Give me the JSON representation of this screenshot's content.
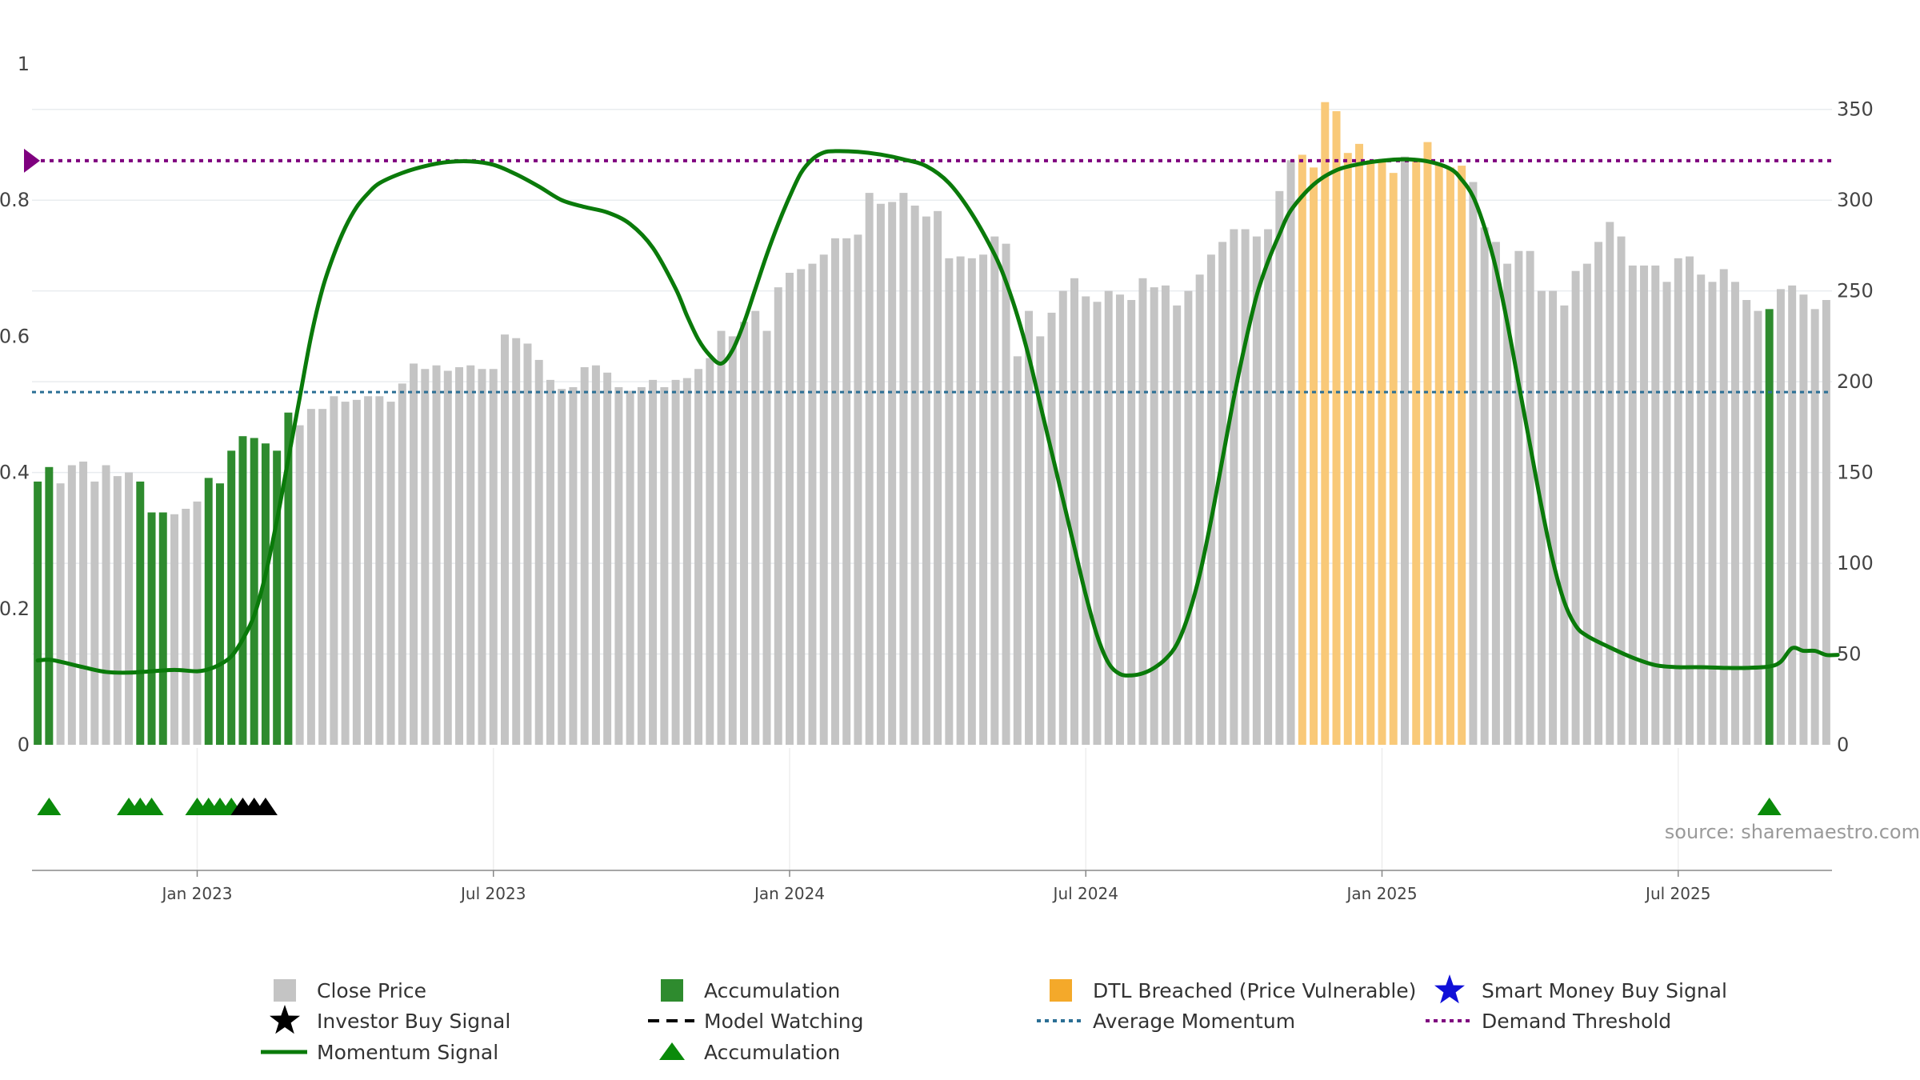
{
  "chart_data": {
    "type": "bar",
    "title": "",
    "source_text": "source: sharemaestro.com",
    "x_tick_labels": [
      "Jan 2023",
      "Jul 2023",
      "Jan 2024",
      "Jul 2024",
      "Jan 2025",
      "Jul 2025"
    ],
    "x_tick_bar_index": [
      14,
      40,
      66,
      92,
      118,
      144
    ],
    "y_left": {
      "range": [
        0,
        1
      ],
      "ticks": [
        0,
        0.2,
        0.4,
        0.6,
        0.8,
        1
      ],
      "tick_labels": [
        "0",
        "0.2",
        "0.4",
        "0.6",
        "0.8",
        "1"
      ]
    },
    "y_right": {
      "range": [
        0,
        375
      ],
      "ticks": [
        0,
        50,
        100,
        150,
        200,
        250,
        300,
        350
      ],
      "tick_labels": [
        "0",
        "50",
        "100",
        "150",
        "200",
        "250",
        "300",
        "350"
      ]
    },
    "close_price": [
      145,
      153,
      144,
      154,
      156,
      145,
      154,
      148,
      150,
      145,
      128,
      128,
      127,
      130,
      134,
      147,
      144,
      162,
      170,
      169,
      166,
      162,
      183,
      176,
      185,
      185,
      192,
      189,
      190,
      192,
      192,
      189,
      199,
      210,
      207,
      209,
      206,
      208,
      209,
      207,
      207,
      226,
      224,
      221,
      212,
      201,
      196,
      197,
      208,
      209,
      205,
      197,
      195,
      197,
      201,
      197,
      201,
      202,
      207,
      213,
      228,
      225,
      233,
      239,
      228,
      252,
      260,
      262,
      265,
      270,
      279,
      279,
      281,
      304,
      298,
      299,
      304,
      297,
      291,
      294,
      268,
      269,
      268,
      270,
      280,
      276,
      214,
      239,
      225,
      238,
      250,
      257,
      247,
      244,
      250,
      248,
      245,
      257,
      252,
      253,
      242,
      250,
      259,
      270,
      277,
      284,
      284,
      280,
      284,
      305,
      322,
      325,
      318,
      354,
      349,
      326,
      331,
      322,
      322,
      315,
      324,
      322,
      332,
      320,
      318,
      319,
      310,
      285,
      277,
      265,
      272,
      272,
      250,
      250,
      242,
      261,
      265,
      277,
      288,
      280,
      264,
      264,
      264,
      255,
      268,
      269,
      259,
      255,
      262,
      255,
      245,
      239,
      241,
      251,
      253,
      248,
      240,
      245
    ],
    "bar_state": [
      "a",
      "a",
      "p",
      "p",
      "p",
      "p",
      "p",
      "p",
      "p",
      "a",
      "a",
      "a",
      "p",
      "p",
      "p",
      "a",
      "a",
      "a",
      "a",
      "a",
      "a",
      "a",
      "a",
      "p",
      "p",
      "p",
      "p",
      "p",
      "p",
      "p",
      "p",
      "p",
      "p",
      "p",
      "p",
      "p",
      "p",
      "p",
      "p",
      "p",
      "p",
      "p",
      "p",
      "p",
      "p",
      "p",
      "p",
      "p",
      "p",
      "p",
      "p",
      "p",
      "p",
      "p",
      "p",
      "p",
      "p",
      "p",
      "p",
      "p",
      "p",
      "p",
      "p",
      "p",
      "p",
      "p",
      "p",
      "p",
      "p",
      "p",
      "p",
      "p",
      "p",
      "p",
      "p",
      "p",
      "p",
      "p",
      "p",
      "p",
      "p",
      "p",
      "p",
      "p",
      "p",
      "p",
      "p",
      "p",
      "p",
      "p",
      "p",
      "p",
      "p",
      "p",
      "p",
      "p",
      "p",
      "p",
      "p",
      "p",
      "p",
      "p",
      "p",
      "p",
      "p",
      "p",
      "p",
      "p",
      "p",
      "p",
      "p",
      "p",
      "p",
      "p",
      "p",
      "p",
      "p",
      "p",
      "p",
      "p",
      "p",
      "p",
      "p",
      "p",
      "p",
      "p",
      "p",
      "p",
      "p",
      "p",
      "p",
      "p",
      "p",
      "p",
      "p",
      "p",
      "p",
      "p",
      "p",
      "p",
      "p",
      "p",
      "p",
      "p",
      "p",
      "p",
      "p",
      "p",
      "p",
      "p",
      "p",
      "p",
      "p",
      "p",
      "p",
      "p",
      "p",
      "p"
    ],
    "dtl_breached_range": [
      111,
      125
    ],
    "dtl_gap_index": 120,
    "accumulation_bars_extra": [
      10,
      11,
      152
    ],
    "momentum_signal_points": [
      [
        0,
        0.124
      ],
      [
        1,
        0.125
      ],
      [
        2,
        0.122
      ],
      [
        4,
        0.114
      ],
      [
        6,
        0.107
      ],
      [
        8,
        0.106
      ],
      [
        10,
        0.108
      ],
      [
        12,
        0.11
      ],
      [
        14,
        0.108
      ],
      [
        15,
        0.111
      ],
      [
        16,
        0.118
      ],
      [
        17,
        0.13
      ],
      [
        18,
        0.155
      ],
      [
        19,
        0.19
      ],
      [
        20,
        0.25
      ],
      [
        21,
        0.33
      ],
      [
        22,
        0.42
      ],
      [
        23,
        0.51
      ],
      [
        24,
        0.6
      ],
      [
        25,
        0.67
      ],
      [
        26,
        0.72
      ],
      [
        27,
        0.76
      ],
      [
        28,
        0.79
      ],
      [
        29,
        0.81
      ],
      [
        30,
        0.825
      ],
      [
        32,
        0.84
      ],
      [
        34,
        0.85
      ],
      [
        36,
        0.856
      ],
      [
        38,
        0.857
      ],
      [
        40,
        0.852
      ],
      [
        42,
        0.838
      ],
      [
        44,
        0.82
      ],
      [
        46,
        0.8
      ],
      [
        48,
        0.79
      ],
      [
        50,
        0.782
      ],
      [
        52,
        0.765
      ],
      [
        54,
        0.73
      ],
      [
        56,
        0.67
      ],
      [
        57,
        0.63
      ],
      [
        58,
        0.595
      ],
      [
        59,
        0.572
      ],
      [
        60,
        0.56
      ],
      [
        61,
        0.58
      ],
      [
        62,
        0.62
      ],
      [
        63,
        0.67
      ],
      [
        64,
        0.72
      ],
      [
        65,
        0.765
      ],
      [
        66,
        0.805
      ],
      [
        67,
        0.84
      ],
      [
        68,
        0.86
      ],
      [
        69,
        0.87
      ],
      [
        70,
        0.872
      ],
      [
        72,
        0.871
      ],
      [
        74,
        0.867
      ],
      [
        76,
        0.86
      ],
      [
        78,
        0.85
      ],
      [
        80,
        0.825
      ],
      [
        82,
        0.78
      ],
      [
        84,
        0.72
      ],
      [
        85,
        0.68
      ],
      [
        86,
        0.63
      ],
      [
        87,
        0.57
      ],
      [
        88,
        0.5
      ],
      [
        89,
        0.43
      ],
      [
        90,
        0.36
      ],
      [
        91,
        0.29
      ],
      [
        92,
        0.22
      ],
      [
        93,
        0.16
      ],
      [
        94,
        0.12
      ],
      [
        95,
        0.104
      ],
      [
        96,
        0.102
      ],
      [
        97,
        0.105
      ],
      [
        98,
        0.113
      ],
      [
        99,
        0.126
      ],
      [
        100,
        0.148
      ],
      [
        101,
        0.19
      ],
      [
        102,
        0.25
      ],
      [
        103,
        0.33
      ],
      [
        104,
        0.42
      ],
      [
        105,
        0.51
      ],
      [
        106,
        0.59
      ],
      [
        107,
        0.66
      ],
      [
        108,
        0.71
      ],
      [
        109,
        0.75
      ],
      [
        110,
        0.785
      ],
      [
        112,
        0.823
      ],
      [
        114,
        0.844
      ],
      [
        116,
        0.853
      ],
      [
        118,
        0.858
      ],
      [
        120,
        0.86
      ],
      [
        122,
        0.857
      ],
      [
        124,
        0.846
      ],
      [
        125,
        0.83
      ],
      [
        126,
        0.805
      ],
      [
        127,
        0.76
      ],
      [
        128,
        0.7
      ],
      [
        129,
        0.62
      ],
      [
        130,
        0.53
      ],
      [
        131,
        0.44
      ],
      [
        132,
        0.35
      ],
      [
        133,
        0.27
      ],
      [
        134,
        0.21
      ],
      [
        135,
        0.175
      ],
      [
        136,
        0.16
      ],
      [
        138,
        0.143
      ],
      [
        140,
        0.128
      ],
      [
        142,
        0.117
      ],
      [
        144,
        0.114
      ],
      [
        146,
        0.114
      ],
      [
        148,
        0.113
      ],
      [
        150,
        0.113
      ],
      [
        152,
        0.115
      ],
      [
        153,
        0.122
      ],
      [
        154,
        0.142
      ],
      [
        155,
        0.138
      ],
      [
        156,
        0.138
      ],
      [
        157,
        0.132
      ],
      [
        158,
        0.132
      ]
    ],
    "average_momentum": 0.518,
    "demand_threshold": 0.858,
    "accumulation_markers": [
      1,
      8,
      9,
      10,
      14,
      15,
      16,
      17
    ],
    "investor_buy_markers": [
      18,
      19,
      20
    ],
    "accumulation_marker_extra": [
      152
    ],
    "legend": [
      "Close Price",
      "Accumulation",
      "DTL Breached (Price Vulnerable)",
      "Smart Money Buy Signal",
      "Investor Buy Signal",
      "Model Watching",
      "Average Momentum",
      "Demand Threshold",
      "Momentum Signal",
      "Accumulation"
    ],
    "colors": {
      "close_price": "#c4c4c4",
      "accumulation": "#2e8b2e",
      "dtl": "#f9c978",
      "momentum": "#0a7a0a",
      "average": "#2b6f95",
      "threshold": "#7f007f",
      "marker_green": "#0a8a0a",
      "marker_black": "#000000",
      "star_blue": "#1010d8",
      "legend_dtl": "#f4a92a"
    }
  }
}
